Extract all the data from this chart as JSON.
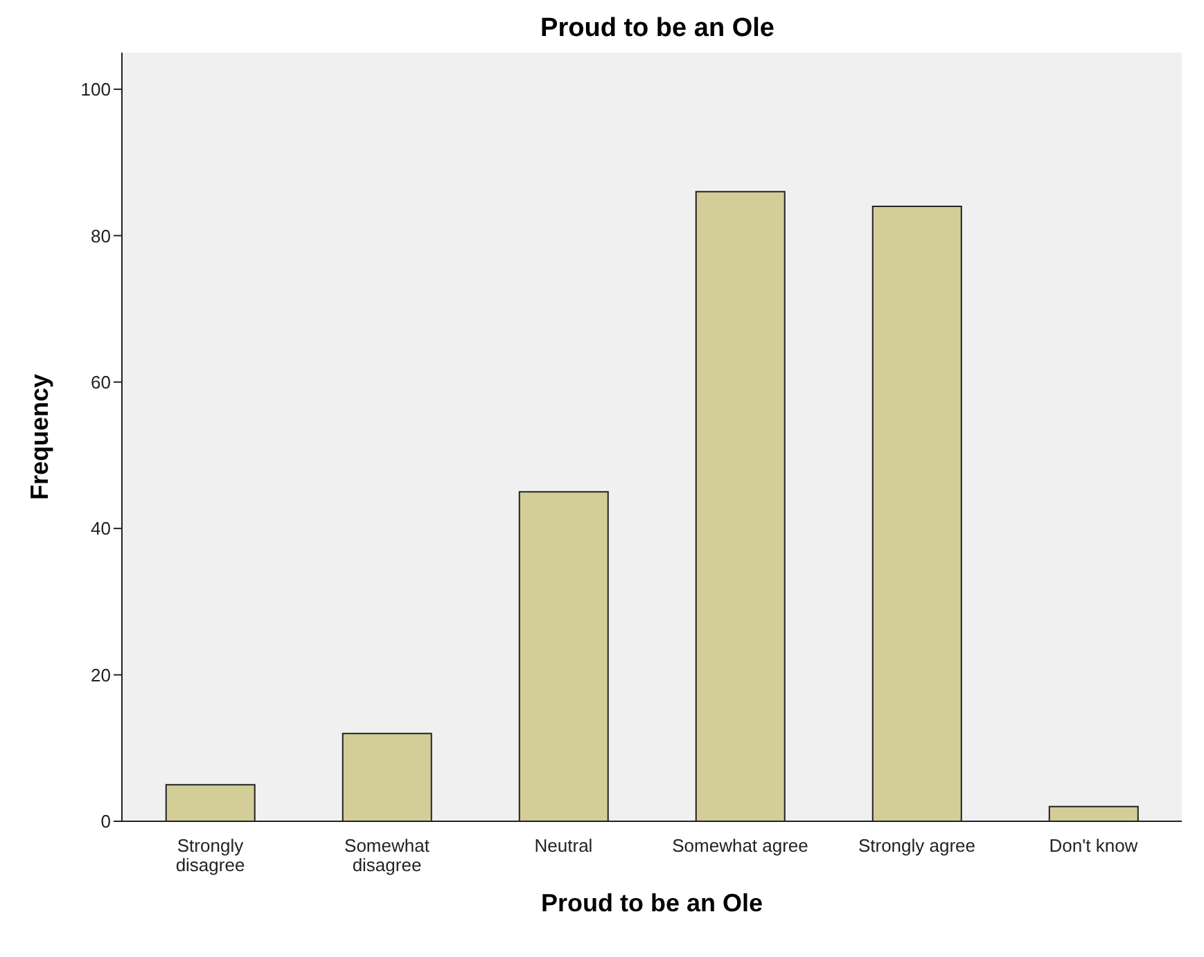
{
  "chart_data": {
    "type": "bar",
    "title": "Proud to be an Ole",
    "xlabel": "Proud to be an Ole",
    "ylabel": "Frequency",
    "categories": [
      "Strongly disagree",
      "Somewhat disagree",
      "Neutral",
      "Somewhat agree",
      "Strongly agree",
      "Don't know"
    ],
    "values": [
      5,
      12,
      45,
      86,
      84,
      2
    ],
    "color": "#d3ce97",
    "ylim": [
      0,
      105
    ],
    "yticks": [
      0,
      20,
      40,
      60,
      80,
      100
    ],
    "grid": false
  }
}
